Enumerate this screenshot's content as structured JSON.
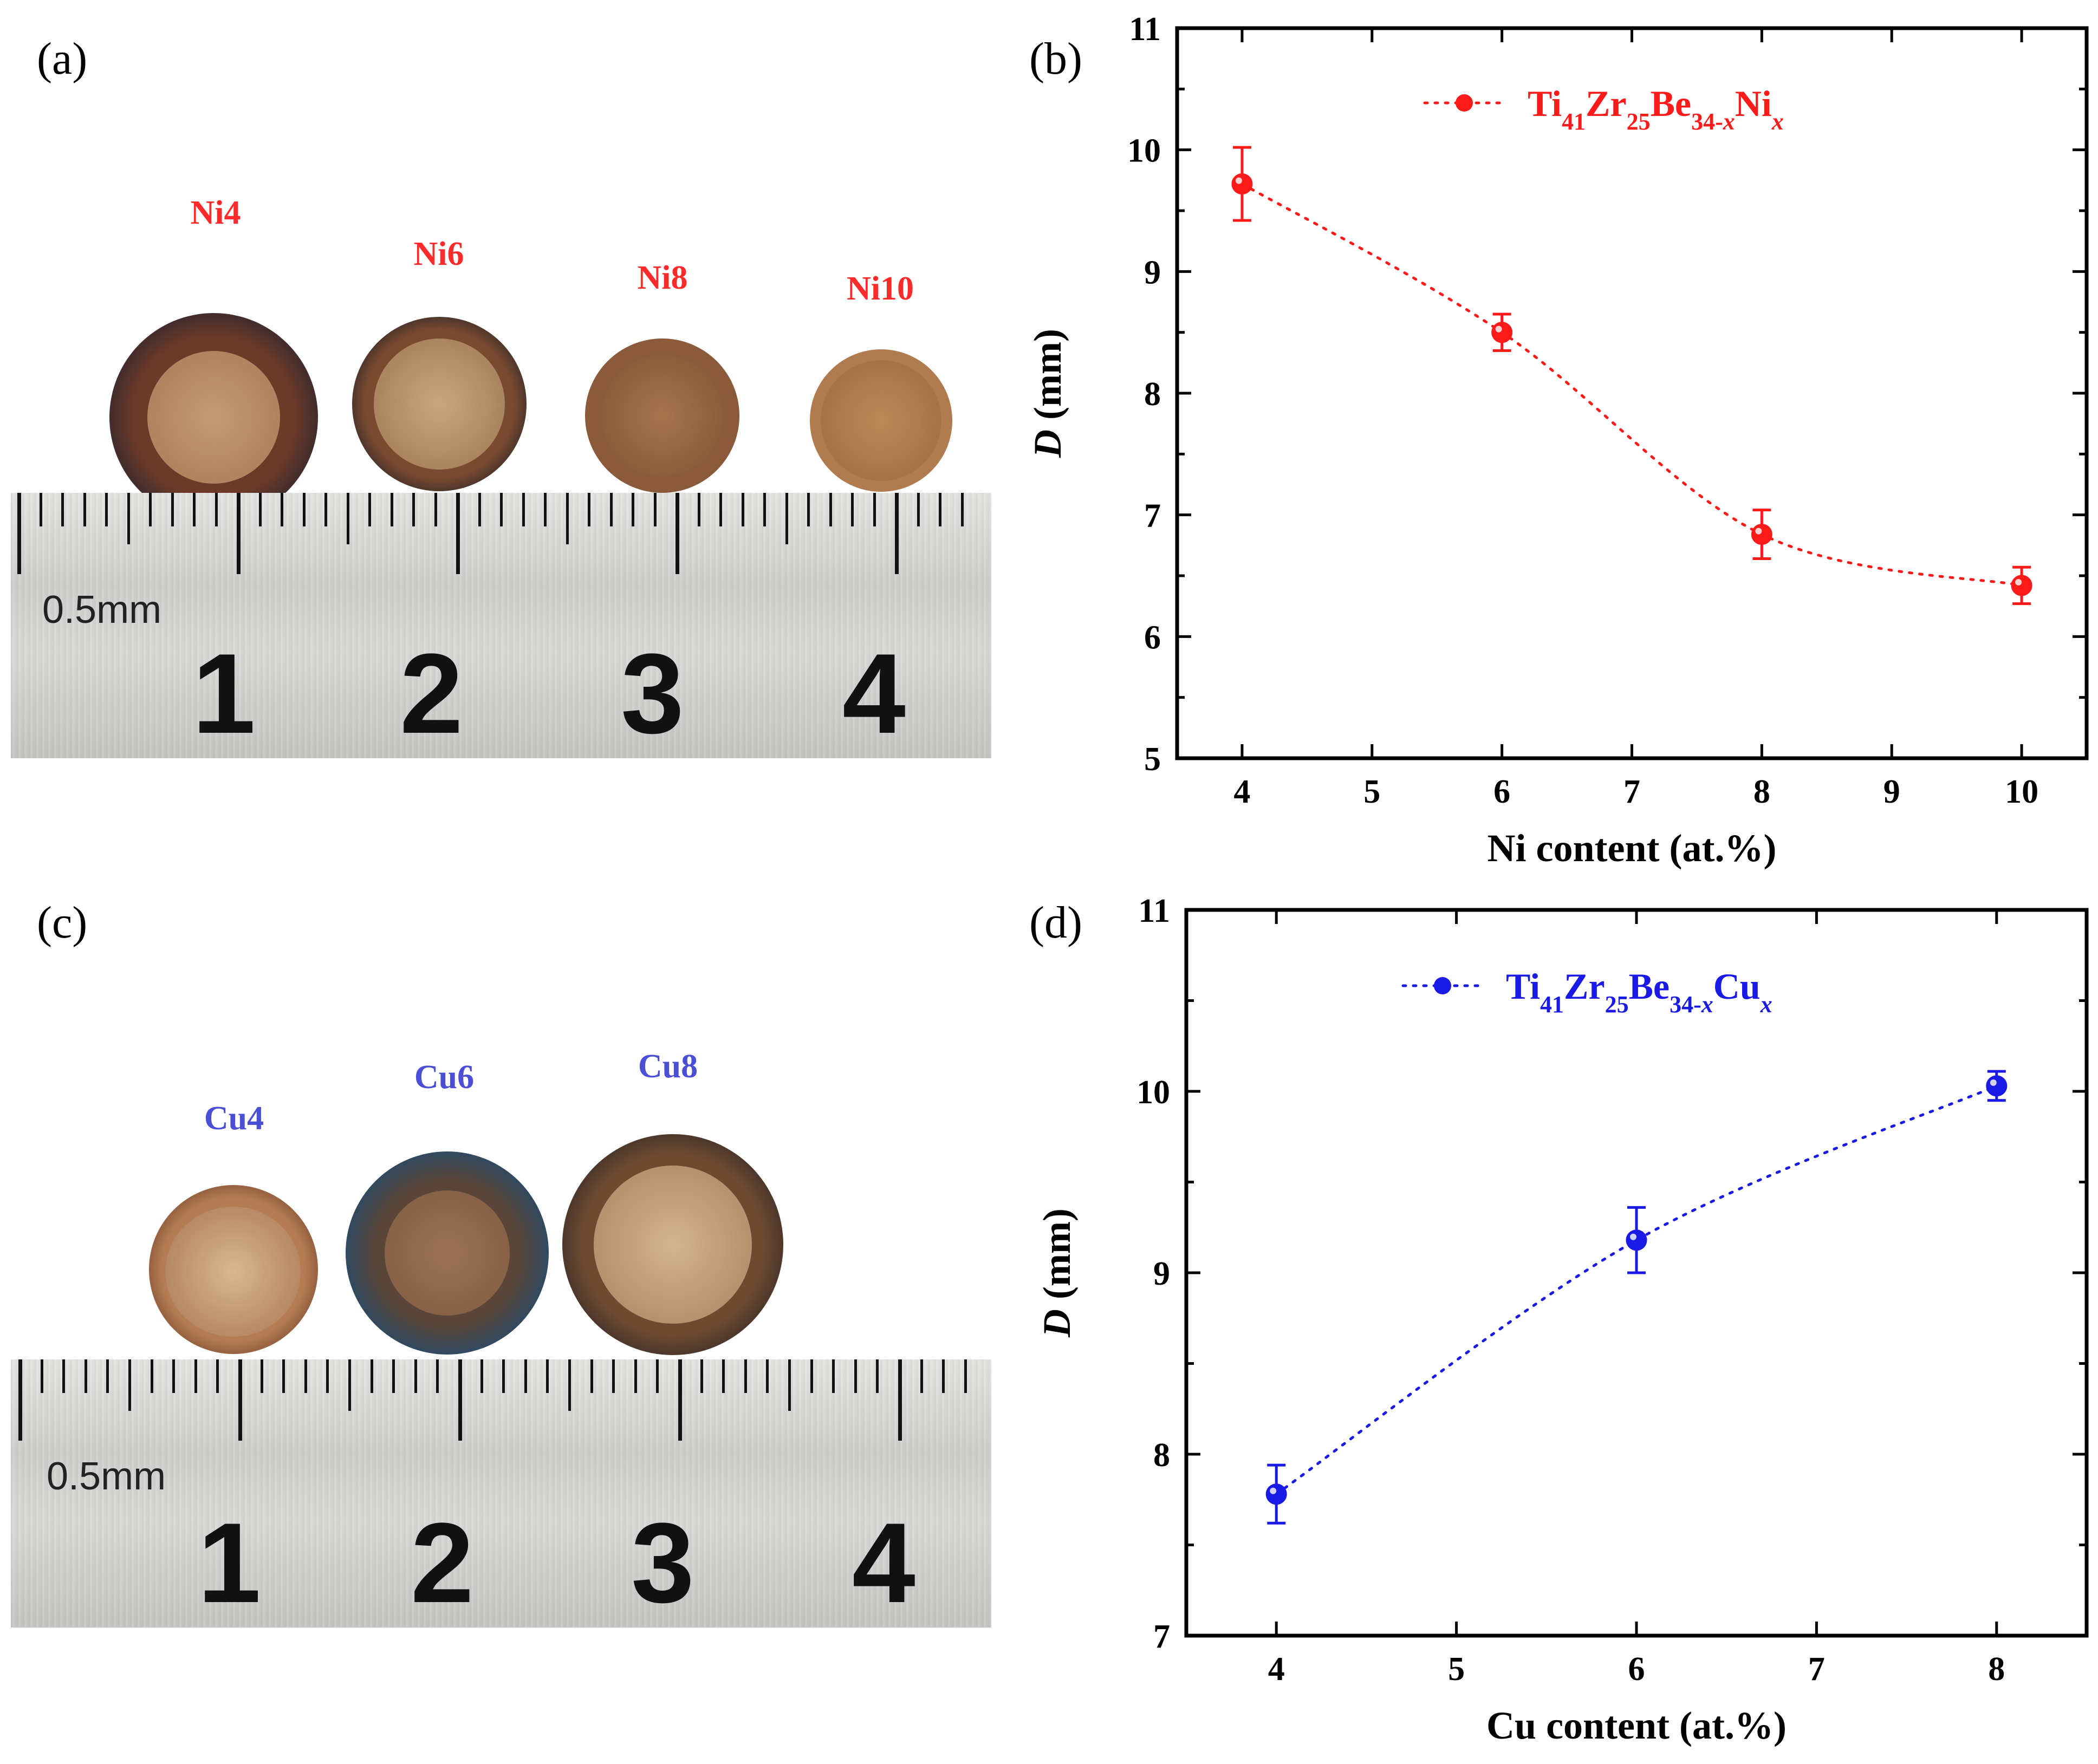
{
  "panels": {
    "a": {
      "label": "(a)"
    },
    "b": {
      "label": "(b)"
    },
    "c": {
      "label": "(c)"
    },
    "d": {
      "label": "(d)"
    }
  },
  "photo_a": {
    "ruler_unit": "0.5mm",
    "ruler_numbers": [
      "1",
      "2",
      "3",
      "4"
    ],
    "samples": [
      {
        "label": "Ni4",
        "label_color": "#ff2a2a"
      },
      {
        "label": "Ni6",
        "label_color": "#ff2a2a"
      },
      {
        "label": "Ni8",
        "label_color": "#ff2a2a"
      },
      {
        "label": "Ni10",
        "label_color": "#ff2a2a"
      }
    ]
  },
  "photo_c": {
    "ruler_unit": "0.5mm",
    "ruler_numbers": [
      "1",
      "2",
      "3",
      "4"
    ],
    "samples": [
      {
        "label": "Cu4",
        "label_color": "#4a4fd6"
      },
      {
        "label": "Cu6",
        "label_color": "#4a4fd6"
      },
      {
        "label": "Cu8",
        "label_color": "#4a4fd6"
      }
    ]
  },
  "chart_data": [
    {
      "type": "scatter",
      "panel": "b",
      "color": "#ff1a1a",
      "xlabel": "Ni content (at.%)",
      "ylabel_italic": "D",
      "ylabel_rest": " (mm)",
      "xlim": [
        3.5,
        10.5
      ],
      "ylim": [
        5,
        11
      ],
      "xticks": [
        4,
        5,
        6,
        7,
        8,
        9,
        10
      ],
      "yticks": [
        5,
        6,
        7,
        8,
        9,
        10,
        11
      ],
      "legend": {
        "position": "top",
        "parts": [
          "Ti",
          "41",
          "Zr",
          "25",
          "Be",
          "34-x",
          "Ni",
          "x"
        ]
      },
      "series": [
        {
          "name": "Ti41Zr25Be34-xNix",
          "x": [
            4,
            6,
            8,
            10
          ],
          "y": [
            9.72,
            8.5,
            6.84,
            6.42
          ],
          "err": [
            0.3,
            0.15,
            0.2,
            0.15
          ]
        }
      ]
    },
    {
      "type": "scatter",
      "panel": "d",
      "color": "#1a1ae6",
      "xlabel": "Cu content (at.%)",
      "ylabel_italic": "D",
      "ylabel_rest": " (mm)",
      "xlim": [
        3.5,
        8.5
      ],
      "ylim": [
        7,
        11
      ],
      "xticks": [
        4,
        5,
        6,
        7,
        8
      ],
      "yticks": [
        7,
        8,
        9,
        10,
        11
      ],
      "legend": {
        "position": "top",
        "parts": [
          "Ti",
          "41",
          "Zr",
          "25",
          "Be",
          "34-x",
          "Cu",
          "x"
        ]
      },
      "series": [
        {
          "name": "Ti41Zr25Be34-xCux",
          "x": [
            4,
            6,
            8
          ],
          "y": [
            7.78,
            9.18,
            10.03
          ],
          "err": [
            0.16,
            0.18,
            0.08
          ]
        }
      ]
    }
  ]
}
